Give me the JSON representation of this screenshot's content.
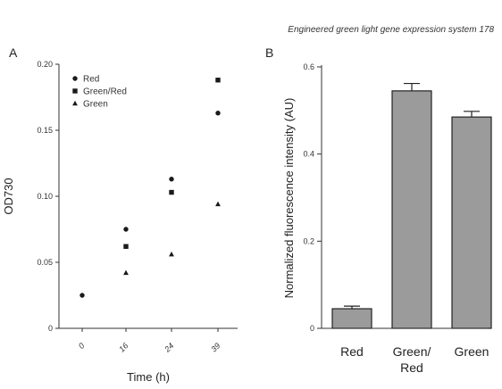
{
  "header": {
    "text": "Engineered green light gene expression system  178"
  },
  "chart_data": [
    {
      "type": "scatter",
      "panel_label": "A",
      "x_ticks": [
        "0",
        "16",
        "24",
        "39"
      ],
      "xlabel": "Time (h)",
      "ylabel": "OD730",
      "ylim": [
        0,
        0.2
      ],
      "y_ticks": [
        "0",
        "0.05",
        "0.10",
        "0.15",
        "0.20"
      ],
      "legend_position": "top-left",
      "series": [
        {
          "name": "Red",
          "marker": "circle",
          "values": [
            0.025,
            0.075,
            0.113,
            0.163
          ]
        },
        {
          "name": "Green/Red",
          "marker": "square",
          "values": [
            0.025,
            0.062,
            0.103,
            0.188
          ]
        },
        {
          "name": "Green",
          "marker": "triangle",
          "values": [
            0.025,
            0.042,
            0.056,
            0.094
          ]
        }
      ]
    },
    {
      "type": "bar",
      "panel_label": "B",
      "categories": [
        "Red",
        "Green/ Red",
        "Green"
      ],
      "category_lines": [
        [
          "Red"
        ],
        [
          "Green/",
          "Red"
        ],
        [
          "Green"
        ]
      ],
      "values": [
        0.045,
        0.545,
        0.485
      ],
      "errors": [
        0.006,
        0.017,
        0.013
      ],
      "ylabel": "Normalized fluorescence intensity (AU)",
      "ylim": [
        0,
        0.6
      ],
      "y_ticks": [
        "0",
        "0.2",
        "0.4",
        "0.6"
      ],
      "bar_color": "#9b9b9b"
    }
  ]
}
